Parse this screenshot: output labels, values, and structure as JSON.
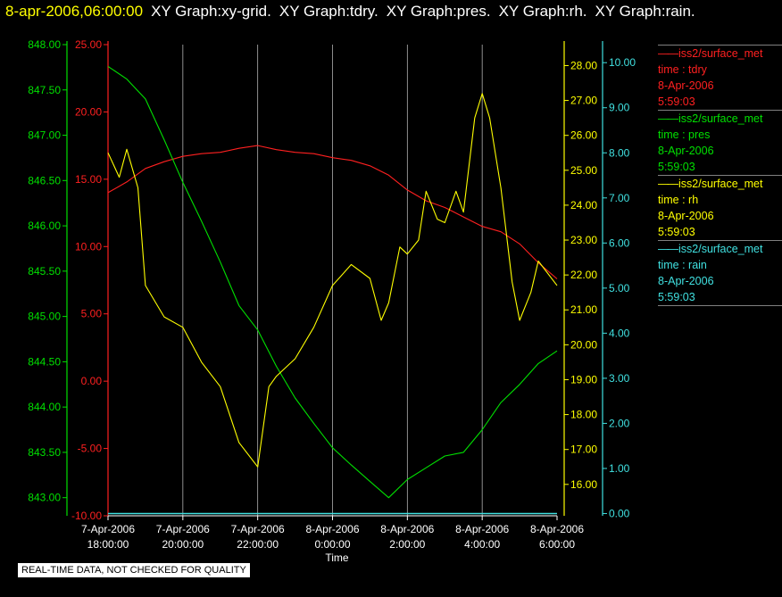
{
  "header": {
    "timestamp": "8-apr-2006,06:00:00",
    "graph_titles": [
      "XY Graph:xy-grid.",
      "XY Graph:tdry.",
      "XY Graph:pres.",
      "XY Graph:rh.",
      "XY Graph:rain."
    ]
  },
  "colors": {
    "background": "#000000",
    "tdry": "#ff2020",
    "pres": "#00e000",
    "rh": "#ffff00",
    "rain": "#40e0e0",
    "grid": "#b0b0b0",
    "text": "#ffffff"
  },
  "legend": [
    {
      "source": "iss2/surface_met",
      "field": "time : tdry",
      "date": "8-Apr-2006",
      "time": "5:59:03",
      "color": "#ff2020"
    },
    {
      "source": "iss2/surface_met",
      "field": "time : pres",
      "date": "8-Apr-2006",
      "time": "5:59:03",
      "color": "#00e000"
    },
    {
      "source": "iss2/surface_met",
      "field": "time : rh",
      "date": "8-Apr-2006",
      "time": "5:59:03",
      "color": "#ffff00"
    },
    {
      "source": "iss2/surface_met",
      "field": "time : rain",
      "date": "8-Apr-2006",
      "time": "5:59:03",
      "color": "#40e0e0"
    }
  ],
  "disclaimer": "REAL-TIME DATA, NOT CHECKED FOR QUALITY",
  "chart_data": {
    "type": "line",
    "xlabel": "Time",
    "x_ticks": [
      {
        "date": "7-Apr-2006",
        "time": "18:00:00"
      },
      {
        "date": "7-Apr-2006",
        "time": "20:00:00"
      },
      {
        "date": "7-Apr-2006",
        "time": "22:00:00"
      },
      {
        "date": "8-Apr-2006",
        "time": "0:00:00"
      },
      {
        "date": "8-Apr-2006",
        "time": "2:00:00"
      },
      {
        "date": "8-Apr-2006",
        "time": "4:00:00"
      },
      {
        "date": "8-Apr-2006",
        "time": "6:00:00"
      }
    ],
    "xlim_hours": [
      18,
      30
    ],
    "grid": "vertical",
    "axes": {
      "pres": {
        "ticks": [
          "848.00",
          "847.50",
          "847.00",
          "846.50",
          "846.00",
          "845.50",
          "845.00",
          "844.50",
          "844.00",
          "843.50",
          "843.00"
        ],
        "ylim": [
          842.8,
          848.0
        ],
        "color": "#00e000"
      },
      "tdry": {
        "ticks": [
          "25.00",
          "20.00",
          "15.00",
          "10.00",
          "5.00",
          "0.00",
          "-5.00",
          "-10.00"
        ],
        "ylim": [
          -10,
          25
        ],
        "color": "#ff2020"
      },
      "rh": {
        "ticks": [
          "28.00",
          "27.00",
          "26.00",
          "25.00",
          "24.00",
          "23.00",
          "22.00",
          "21.00",
          "20.00",
          "19.00",
          "18.00",
          "17.00",
          "16.00"
        ],
        "ylim": [
          15.1,
          28.6
        ],
        "color": "#ffff00"
      },
      "rain": {
        "ticks": [
          "10.00",
          "9.00",
          "8.00",
          "7.00",
          "6.00",
          "5.00",
          "4.00",
          "3.00",
          "2.00",
          "1.00",
          "0.00"
        ],
        "ylim": [
          -0.05,
          10.4
        ],
        "color": "#40e0e0"
      }
    },
    "series": [
      {
        "name": "tdry",
        "axis": "tdry",
        "x": [
          18.0,
          18.5,
          19.0,
          19.5,
          20.0,
          20.5,
          21.0,
          21.5,
          22.0,
          22.5,
          23.0,
          23.5,
          24.0,
          24.5,
          25.0,
          25.5,
          26.0,
          26.5,
          27.0,
          27.5,
          28.0,
          28.5,
          29.0,
          29.5,
          30.0
        ],
        "y": [
          14.0,
          14.8,
          15.8,
          16.3,
          16.7,
          16.9,
          17.0,
          17.3,
          17.5,
          17.2,
          17.0,
          16.9,
          16.6,
          16.4,
          16.0,
          15.3,
          14.2,
          13.4,
          12.9,
          12.2,
          11.5,
          11.1,
          10.2,
          8.8,
          7.6
        ]
      },
      {
        "name": "pres",
        "axis": "pres",
        "x": [
          18.0,
          18.5,
          19.0,
          19.5,
          20.0,
          20.5,
          21.0,
          21.5,
          22.0,
          22.5,
          23.0,
          23.5,
          24.0,
          24.5,
          25.0,
          25.5,
          26.0,
          26.5,
          27.0,
          27.5,
          28.0,
          28.5,
          29.0,
          29.5,
          30.0
        ],
        "y": [
          847.76,
          847.62,
          847.4,
          846.95,
          846.48,
          846.05,
          845.6,
          845.12,
          844.85,
          844.45,
          844.1,
          843.82,
          843.55,
          843.36,
          843.18,
          843.0,
          843.2,
          843.33,
          843.46,
          843.5,
          843.75,
          844.05,
          844.25,
          844.48,
          844.62
        ]
      },
      {
        "name": "rh",
        "axis": "rh",
        "x": [
          18.0,
          18.3,
          18.5,
          18.8,
          19.0,
          19.5,
          20.0,
          20.5,
          21.0,
          21.5,
          22.0,
          22.3,
          22.5,
          23.0,
          23.5,
          24.0,
          24.5,
          25.0,
          25.3,
          25.5,
          25.8,
          26.0,
          26.3,
          26.5,
          26.8,
          27.0,
          27.3,
          27.5,
          27.8,
          28.0,
          28.2,
          28.5,
          28.8,
          29.0,
          29.3,
          29.5,
          30.0
        ],
        "y": [
          25.5,
          24.8,
          25.6,
          24.5,
          21.7,
          20.8,
          20.5,
          19.5,
          18.8,
          17.2,
          16.5,
          18.8,
          19.1,
          19.6,
          20.5,
          21.7,
          22.3,
          21.9,
          20.7,
          21.2,
          22.8,
          22.6,
          23.0,
          24.4,
          23.6,
          23.5,
          24.4,
          23.8,
          26.5,
          27.2,
          26.5,
          24.5,
          21.8,
          20.7,
          21.5,
          22.4,
          21.7
        ]
      },
      {
        "name": "rain",
        "axis": "rain",
        "x": [
          18.0,
          30.0
        ],
        "y": [
          0.0,
          0.0
        ]
      }
    ]
  }
}
